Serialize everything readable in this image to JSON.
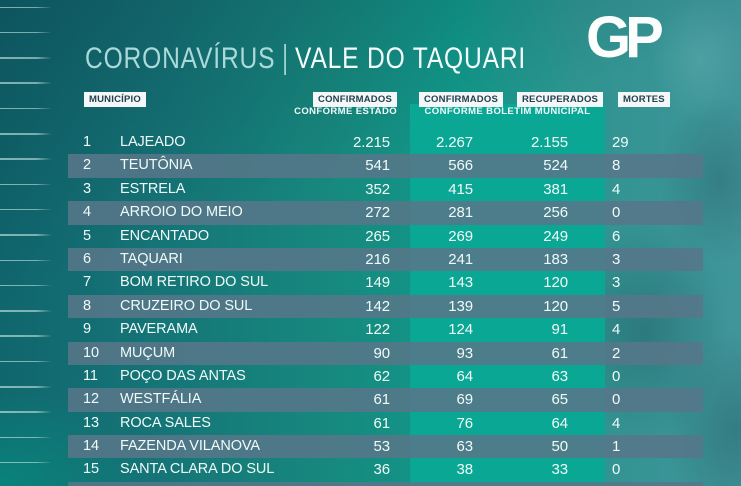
{
  "page": {
    "title_part1": "CORONAVÍRUS",
    "title_separator": "|",
    "title_part2": "VALE DO TAQUARI",
    "logo_text": "GP"
  },
  "header": {
    "municipio": "MUNICÍPIO",
    "confirmados_estado": "CONFIRMADOS",
    "confirmados_estado_sub": "CONFORME ESTADO",
    "confirmados_municipal": "CONFIRMADOS",
    "recuperados": "RECUPERADOS",
    "boletim_municipal_sub": "CONFORME BOLETIM MUNICIPAL",
    "mortes": "MORTES"
  },
  "chart_data": {
    "type": "table",
    "title": "CORONAVÍRUS | VALE DO TAQUARI",
    "columns": [
      "MUNICÍPIO",
      "CONFIRMADOS CONFORME ESTADO",
      "CONFIRMADOS CONFORME BOLETIM MUNICIPAL",
      "RECUPERADOS CONFORME BOLETIM MUNICIPAL",
      "MORTES"
    ],
    "rows": [
      {
        "rank": "1",
        "municipality": "LAJEADO",
        "confirmed_state": "2.215",
        "confirmed_municipal": "2.267",
        "recovered": "2.155",
        "deaths": "29"
      },
      {
        "rank": "2",
        "municipality": "TEUTÔNIA",
        "confirmed_state": "541",
        "confirmed_municipal": "566",
        "recovered": "524",
        "deaths": "8"
      },
      {
        "rank": "3",
        "municipality": "ESTRELA",
        "confirmed_state": "352",
        "confirmed_municipal": "415",
        "recovered": "381",
        "deaths": "4"
      },
      {
        "rank": "4",
        "municipality": "ARROIO DO MEIO",
        "confirmed_state": "272",
        "confirmed_municipal": "281",
        "recovered": "256",
        "deaths": "0"
      },
      {
        "rank": "5",
        "municipality": "ENCANTADO",
        "confirmed_state": "265",
        "confirmed_municipal": "269",
        "recovered": "249",
        "deaths": "6"
      },
      {
        "rank": "6",
        "municipality": "TAQUARI",
        "confirmed_state": "216",
        "confirmed_municipal": "241",
        "recovered": "183",
        "deaths": "3"
      },
      {
        "rank": "7",
        "municipality": "BOM RETIRO DO SUL",
        "confirmed_state": "149",
        "confirmed_municipal": "143",
        "recovered": "120",
        "deaths": "3"
      },
      {
        "rank": "8",
        "municipality": "CRUZEIRO DO SUL",
        "confirmed_state": "142",
        "confirmed_municipal": "139",
        "recovered": "120",
        "deaths": "5"
      },
      {
        "rank": "9",
        "municipality": "PAVERAMA",
        "confirmed_state": "122",
        "confirmed_municipal": "124",
        "recovered": "91",
        "deaths": "4"
      },
      {
        "rank": "10",
        "municipality": "MUÇUM",
        "confirmed_state": "90",
        "confirmed_municipal": "93",
        "recovered": "61",
        "deaths": "2"
      },
      {
        "rank": "11",
        "municipality": "POÇO DAS ANTAS",
        "confirmed_state": "62",
        "confirmed_municipal": "64",
        "recovered": "63",
        "deaths": "0"
      },
      {
        "rank": "12",
        "municipality": "WESTFÁLIA",
        "confirmed_state": "61",
        "confirmed_municipal": "69",
        "recovered": "65",
        "deaths": "0"
      },
      {
        "rank": "13",
        "municipality": "ROCA SALES",
        "confirmed_state": "61",
        "confirmed_municipal": "76",
        "recovered": "64",
        "deaths": "4"
      },
      {
        "rank": "14",
        "municipality": "FAZENDA VILANOVA",
        "confirmed_state": "53",
        "confirmed_municipal": "63",
        "recovered": "50",
        "deaths": "1"
      },
      {
        "rank": "15",
        "municipality": "SANTA CLARA DO SUL",
        "confirmed_state": "36",
        "confirmed_municipal": "38",
        "recovered": "33",
        "deaths": "0"
      }
    ]
  },
  "colors": {
    "background_teal": "#157577",
    "band_green": "#0ba795",
    "row_stripe_gray": "#56768a",
    "chip_bg": "#f3f7f7",
    "chip_text": "#24404f",
    "row_text": "#f0fbf9",
    "title_dim": "#abd9da",
    "title_bright": "#f4fdfd",
    "logo_white": "#fcfefe"
  }
}
